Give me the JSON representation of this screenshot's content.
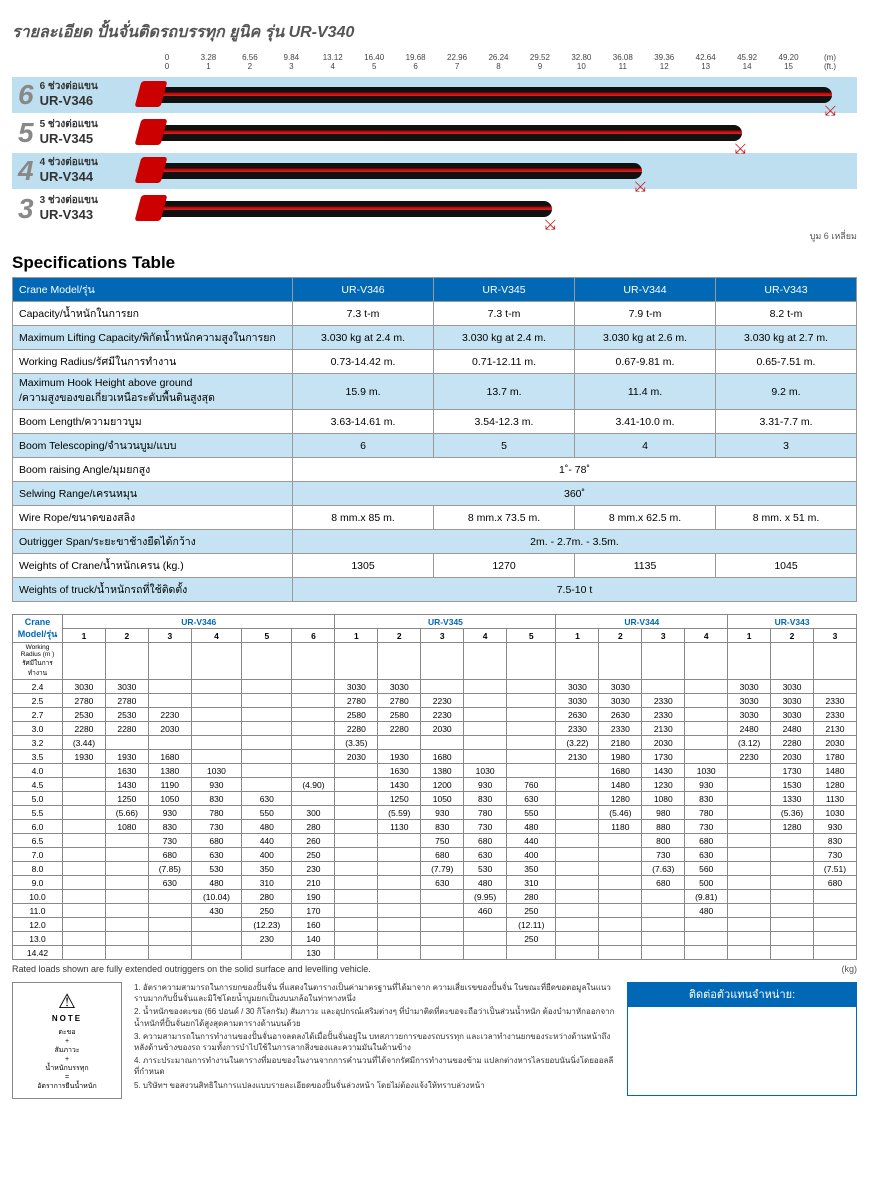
{
  "title": "รายละเอียด ปั้นจั่นติดรถบรรทุก ยูนิค รุ่น UR-V340",
  "ruler": {
    "ft": [
      "0",
      "1",
      "2",
      "3",
      "4",
      "5",
      "6",
      "7",
      "8",
      "9",
      "10",
      "11",
      "12",
      "13",
      "14",
      "15"
    ],
    "m": [
      "0",
      "3.28",
      "6.56",
      "9.84",
      "13.12",
      "16.40",
      "19.68",
      "22.96",
      "26.24",
      "29.52",
      "32.80",
      "36.08",
      "39.36",
      "42.64",
      "45.92",
      "49.20"
    ],
    "unit_top": "(ft.)",
    "unit_bot": "(m)"
  },
  "booms": [
    {
      "n": "6",
      "sub": "6 ช่วงต่อแขน",
      "model": "UR-V346",
      "len": 680,
      "alt": true
    },
    {
      "n": "5",
      "sub": "5 ช่วงต่อแขน",
      "model": "UR-V345",
      "len": 590,
      "alt": false
    },
    {
      "n": "4",
      "sub": "4 ช่วงต่อแขน",
      "model": "UR-V344",
      "len": 490,
      "alt": true
    },
    {
      "n": "3",
      "sub": "3 ช่วงต่อแขน",
      "model": "UR-V343",
      "len": 400,
      "alt": false
    }
  ],
  "boom_note": "บูม 6 เหลี่ยม",
  "spec_title": "Specifications Table",
  "spec": {
    "header": [
      "Crane Model/รุ่น",
      "UR-V346",
      "UR-V345",
      "UR-V344",
      "UR-V343"
    ],
    "rows": [
      {
        "alt": false,
        "label": "Capacity/น้ำหนักในการยก",
        "vals": [
          "7.3 t-m",
          "7.3 t-m",
          "7.9 t-m",
          "8.2 t-m"
        ]
      },
      {
        "alt": true,
        "label": "Maximum Lifting Capacity/พิกัดน้ำหนักความสูงในการยก",
        "vals": [
          "3.030 kg at 2.4 m.",
          "3.030 kg at 2.4 m.",
          "3.030 kg at 2.6 m.",
          "3.030 kg at 2.7 m."
        ]
      },
      {
        "alt": false,
        "label": "Working Radius/รัศมีในการทำงาน",
        "vals": [
          "0.73-14.42 m.",
          "0.71-12.11 m.",
          "0.67-9.81 m.",
          "0.65-7.51 m."
        ]
      },
      {
        "alt": true,
        "label": "Maximum Hook Height above ground\n/ความสูงของขอเกี่ยวเหนือระดับพื้นดินสูงสุด",
        "vals": [
          "15.9 m.",
          "13.7 m.",
          "11.4 m.",
          "9.2 m."
        ]
      },
      {
        "alt": false,
        "label": "Boom Length/ความยาวบูม",
        "vals": [
          "3.63-14.61 m.",
          "3.54-12.3 m.",
          "3.41-10.0 m.",
          "3.31-7.7 m."
        ]
      },
      {
        "alt": true,
        "label": "Boom Telescoping/จำนวนบูม/แบบ",
        "vals": [
          "6",
          "5",
          "4",
          "3"
        ]
      },
      {
        "alt": false,
        "label": "Boom raising Angle/มุมยกสูง",
        "merged": "1˚- 78˚"
      },
      {
        "alt": true,
        "label": "Selwing Range/เครนหมุน",
        "merged": "360˚"
      },
      {
        "alt": false,
        "label": "Wire Rope/ขนาดของสลิง",
        "vals": [
          "8 mm.x 85 m.",
          "8 mm.x 73.5 m.",
          "8 mm.x 62.5 m.",
          "8 mm. x 51 m."
        ]
      },
      {
        "alt": true,
        "label": "Outrigger Span/ระยะขาช้างยืดได้กว้าง",
        "merged": "2m. - 2.7m. - 3.5m."
      },
      {
        "alt": false,
        "label": "Weights of Crane/น้ำหนักเครน (kg.)",
        "vals": [
          "1305",
          "1270",
          "1135",
          "1045"
        ]
      },
      {
        "alt": true,
        "label": "Weights of truck/น้ำหนักรถที่ใช้ติดตั้ง",
        "merged": "7.5-10 t"
      }
    ]
  },
  "load": {
    "title": "Crane Model/รุ่น",
    "subtitle": "Working Radius (m )\nรัศมีในการทำงาน",
    "models": [
      {
        "name": "UR-V346",
        "cols": 6
      },
      {
        "name": "UR-V345",
        "cols": 5
      },
      {
        "name": "UR-V344",
        "cols": 4
      },
      {
        "name": "UR-V343",
        "cols": 3
      }
    ],
    "radius": [
      "2.4",
      "2.5",
      "2.7",
      "3.0",
      "3.2",
      "3.5",
      "4.0",
      "4.5",
      "5.0",
      "5.5",
      "6.0",
      "6.5",
      "7.0",
      "8.0",
      "9.0",
      "10.0",
      "11.0",
      "12.0",
      "13.0",
      "14.42"
    ],
    "data": [
      [
        "3030",
        "3030",
        "",
        "",
        "",
        "",
        "3030",
        "3030",
        "",
        "",
        "",
        "3030",
        "3030",
        "",
        "",
        "3030",
        "3030",
        ""
      ],
      [
        "2780",
        "2780",
        "",
        "",
        "",
        "",
        "2780",
        "2780",
        "2230",
        "",
        "",
        "3030",
        "3030",
        "2330",
        "",
        "3030",
        "3030",
        "2330"
      ],
      [
        "2530",
        "2530",
        "2230",
        "",
        "",
        "",
        "2580",
        "2580",
        "2230",
        "",
        "",
        "2630",
        "2630",
        "2330",
        "",
        "3030",
        "3030",
        "2330"
      ],
      [
        "2280",
        "2280",
        "2030",
        "",
        "",
        "",
        "2280",
        "2280",
        "2030",
        "",
        "",
        "2330",
        "2330",
        "2130",
        "",
        "2480",
        "2480",
        "2130"
      ],
      [
        "(3.44)",
        "",
        "",
        "",
        "",
        "",
        "(3.35)",
        "",
        "",
        "",
        "",
        "(3.22)",
        "2180",
        "2030",
        "",
        "(3.12)",
        "2280",
        "2030"
      ],
      [
        "1930",
        "1930",
        "1680",
        "",
        "",
        "",
        "2030",
        "1930",
        "1680",
        "",
        "",
        "2130",
        "1980",
        "1730",
        "",
        "2230",
        "2030",
        "1780"
      ],
      [
        "",
        "1630",
        "1380",
        "1030",
        "",
        "",
        "",
        "1630",
        "1380",
        "1030",
        "",
        "",
        "1680",
        "1430",
        "1030",
        "",
        "1730",
        "1480"
      ],
      [
        "",
        "1430",
        "1190",
        "930",
        "",
        "(4.90)",
        "",
        "1430",
        "1200",
        "930",
        "760",
        "",
        "1480",
        "1230",
        "930",
        "",
        "1530",
        "1280"
      ],
      [
        "",
        "1250",
        "1050",
        "830",
        "630",
        "",
        "",
        "1250",
        "1050",
        "830",
        "630",
        "",
        "1280",
        "1080",
        "830",
        "",
        "1330",
        "1130"
      ],
      [
        "",
        "(5.66)",
        "930",
        "780",
        "550",
        "300",
        "",
        "(5.59)",
        "930",
        "780",
        "550",
        "",
        "(5.46)",
        "980",
        "780",
        "",
        "(5.36)",
        "1030"
      ],
      [
        "",
        "1080",
        "830",
        "730",
        "480",
        "280",
        "",
        "1130",
        "830",
        "730",
        "480",
        "",
        "1180",
        "880",
        "730",
        "",
        "1280",
        "930"
      ],
      [
        "",
        "",
        "730",
        "680",
        "440",
        "260",
        "",
        "",
        "750",
        "680",
        "440",
        "",
        "",
        "800",
        "680",
        "",
        "",
        "830"
      ],
      [
        "",
        "",
        "680",
        "630",
        "400",
        "250",
        "",
        "",
        "680",
        "630",
        "400",
        "",
        "",
        "730",
        "630",
        "",
        "",
        "730"
      ],
      [
        "",
        "",
        "(7.85)",
        "530",
        "350",
        "230",
        "",
        "",
        "(7.79)",
        "530",
        "350",
        "",
        "",
        "(7.63)",
        "560",
        "",
        "",
        "(7.51)"
      ],
      [
        "",
        "",
        "630",
        "480",
        "310",
        "210",
        "",
        "",
        "630",
        "480",
        "310",
        "",
        "",
        "680",
        "500",
        "",
        "",
        "680"
      ],
      [
        "",
        "",
        "",
        "(10.04)",
        "280",
        "190",
        "",
        "",
        "",
        "(9.95)",
        "280",
        "",
        "",
        "",
        "(9.81)",
        "",
        "",
        ""
      ],
      [
        "",
        "",
        "",
        "430",
        "250",
        "170",
        "",
        "",
        "",
        "460",
        "250",
        "",
        "",
        "",
        "480",
        "",
        "",
        ""
      ],
      [
        "",
        "",
        "",
        "",
        "(12.23)",
        "160",
        "",
        "",
        "",
        "",
        "(12.11)",
        "",
        "",
        "",
        "",
        "",
        "",
        ""
      ],
      [
        "",
        "",
        "",
        "",
        "230",
        "140",
        "",
        "",
        "",
        "",
        "250",
        "",
        "",
        "",
        "",
        "",
        "",
        ""
      ],
      [
        "",
        "",
        "",
        "",
        "",
        "130",
        "",
        "",
        "",
        "",
        "",
        "",
        "",
        "",
        "",
        "",
        "",
        ""
      ]
    ]
  },
  "footnote": "Rated loads shown are fully extended outriggers on the solid surface and levelling vehicle.",
  "kg": "(kg)",
  "notebox": {
    "warn": "⚠",
    "title": "NOTE",
    "formula": "ตะขอ\n+\nสัมภาวะ\n+\nน้ำหนักบรรทุก\n=\nอัตราการยีนน้ำหนัก"
  },
  "notes": [
    "1. อัตราความสามารถในการยกของปั้นจั่น ที่แสดงในตารางเป็นค่ามาตรฐานที่ได้มาจาก ความเสี่ยเรขของปั้นจั่น ในขณะที่ยืดขอตอมูลในแนวราบมากกับปั้นจั่นและมิใช่โดยน้ำบูมยกเป็นงบนกล้อในท่าทางหนึ่ง",
    "2. น้ำหนักของตะขอ (66 ปอนด์ / 30 กิโลกรัม) สัมภาวะ และอุปกรณ์เสริมต่างๆ ที่บำมาติดที่ตะขอจะถือว่าเป็นส่วนน้ำหนัก ต้องบำมาหักออกจากน้ำหนักที่ปั้นจั่นยกได้สูงสุดคามตารางด้านบนด้วย",
    "3. ความสามารถในการทำงานของปั้นจั่นอาจลดลงได้เมื่อปั้นจั่นอยู่ใน บทสภาวยการของรถบรรทุก และเวลาทำงานยกของระหว่างด้านหน้าถึงหลังด้านข้างของรถ รวมทั้งการบำไปใช้ในการลากสิ่งของและความมันในด้านข้าง",
    "4. ภาระประมาณการทำงานในตารางที่มอบของในงานจากการคำนวนที่ได้จากรัศมีการทำงานของข้าม แปลกต่างหารไลรยอบนันนิ่งโดยออลลีที่กำหนด",
    "5. บริษัทฯ ขอสงวนสิทธิในการแปลงแบบรายละเอียดของปั้นจั่นล่วงหน้า โดยไม่ต้องแจ้งให้ทราบล่วงหน้า"
  ],
  "dealer_h": "ติดต่อตัวแทนจำหน่าย:",
  "colors": {
    "header_bg": "#0068b5",
    "alt_bg": "#c5e3f3",
    "boom_alt": "#bedff0",
    "red": "#c41e1e"
  }
}
